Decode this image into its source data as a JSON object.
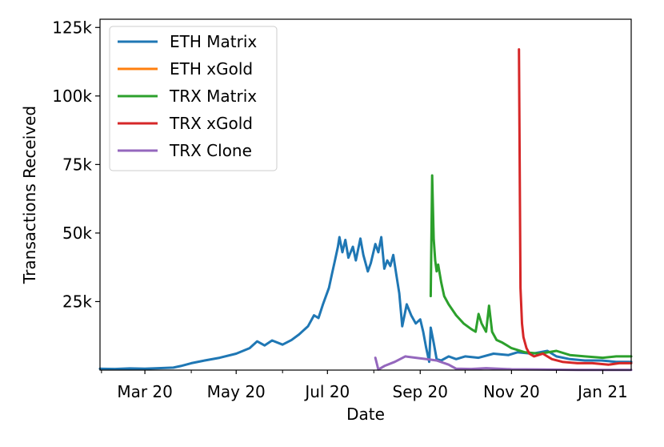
{
  "chart_data": {
    "type": "line",
    "title": "",
    "xlabel": "Date",
    "ylabel": "Transactions Received",
    "xlim": [
      "2020-01-31",
      "2021-01-20"
    ],
    "ylim": [
      0,
      128000
    ],
    "x_tick_labels": [
      {
        "date": "2020-03-01",
        "label": "Mar 20"
      },
      {
        "date": "2020-05-01",
        "label": "May 20"
      },
      {
        "date": "2020-07-01",
        "label": "Jul 20"
      },
      {
        "date": "2020-09-01",
        "label": "Sep 20"
      },
      {
        "date": "2020-11-01",
        "label": "Nov 20"
      },
      {
        "date": "2021-01-01",
        "label": "Jan 21"
      }
    ],
    "x_minor_ticks": [
      "2020-02-01",
      "2020-04-01",
      "2020-06-01",
      "2020-08-01",
      "2020-10-01",
      "2020-12-01"
    ],
    "y_ticks": [
      {
        "value": 25000,
        "label": "25k"
      },
      {
        "value": 50000,
        "label": "50k"
      },
      {
        "value": 75000,
        "label": "75k"
      },
      {
        "value": 100000,
        "label": "100k"
      },
      {
        "value": 125000,
        "label": "125k"
      }
    ],
    "grid": false,
    "legend_position": "top-left",
    "series": [
      {
        "name": "ETH Matrix",
        "color": "#1f77b4",
        "points": [
          [
            "2020-01-31",
            500
          ],
          [
            "2020-02-10",
            400
          ],
          [
            "2020-02-20",
            600
          ],
          [
            "2020-03-01",
            500
          ],
          [
            "2020-03-10",
            700
          ],
          [
            "2020-03-20",
            900
          ],
          [
            "2020-03-25",
            1500
          ],
          [
            "2020-04-01",
            2500
          ],
          [
            "2020-04-10",
            3500
          ],
          [
            "2020-04-20",
            4500
          ],
          [
            "2020-05-01",
            6000
          ],
          [
            "2020-05-10",
            8000
          ],
          [
            "2020-05-15",
            10500
          ],
          [
            "2020-05-20",
            9000
          ],
          [
            "2020-05-25",
            10800
          ],
          [
            "2020-06-01",
            9300
          ],
          [
            "2020-06-07",
            11000
          ],
          [
            "2020-06-12",
            13000
          ],
          [
            "2020-06-18",
            16000
          ],
          [
            "2020-06-22",
            20000
          ],
          [
            "2020-06-25",
            19000
          ],
          [
            "2020-06-28",
            24000
          ],
          [
            "2020-07-02",
            30000
          ],
          [
            "2020-07-04",
            35000
          ],
          [
            "2020-07-06",
            40000
          ],
          [
            "2020-07-08",
            45000
          ],
          [
            "2020-07-09",
            48500
          ],
          [
            "2020-07-11",
            43000
          ],
          [
            "2020-07-13",
            47500
          ],
          [
            "2020-07-15",
            41000
          ],
          [
            "2020-07-18",
            45000
          ],
          [
            "2020-07-20",
            40000
          ],
          [
            "2020-07-23",
            48000
          ],
          [
            "2020-07-25",
            42000
          ],
          [
            "2020-07-28",
            36000
          ],
          [
            "2020-07-30",
            39000
          ],
          [
            "2020-08-02",
            46000
          ],
          [
            "2020-08-04",
            43000
          ],
          [
            "2020-08-06",
            48500
          ],
          [
            "2020-08-08",
            37000
          ],
          [
            "2020-08-10",
            40000
          ],
          [
            "2020-08-12",
            38000
          ],
          [
            "2020-08-14",
            42000
          ],
          [
            "2020-08-16",
            35000
          ],
          [
            "2020-08-18",
            28000
          ],
          [
            "2020-08-20",
            16000
          ],
          [
            "2020-08-23",
            24000
          ],
          [
            "2020-08-26",
            20000
          ],
          [
            "2020-08-29",
            17000
          ],
          [
            "2020-09-01",
            18500
          ],
          [
            "2020-09-03",
            14000
          ],
          [
            "2020-09-05",
            8000
          ],
          [
            "2020-09-07",
            3000
          ],
          [
            "2020-09-08",
            15500
          ],
          [
            "2020-09-10",
            10000
          ],
          [
            "2020-09-12",
            4000
          ],
          [
            "2020-09-15",
            3500
          ],
          [
            "2020-09-20",
            5000
          ],
          [
            "2020-09-25",
            4000
          ],
          [
            "2020-10-01",
            5000
          ],
          [
            "2020-10-10",
            4500
          ],
          [
            "2020-10-20",
            6000
          ],
          [
            "2020-10-30",
            5500
          ],
          [
            "2020-11-05",
            6500
          ],
          [
            "2020-11-15",
            6000
          ],
          [
            "2020-11-25",
            7000
          ],
          [
            "2020-12-01",
            5000
          ],
          [
            "2020-12-10",
            4000
          ],
          [
            "2020-12-20",
            3500
          ],
          [
            "2020-12-31",
            3500
          ],
          [
            "2021-01-10",
            3000
          ],
          [
            "2021-01-20",
            3000
          ]
        ]
      },
      {
        "name": "ETH xGold",
        "color": "#ff7f0e",
        "points": []
      },
      {
        "name": "TRX Matrix",
        "color": "#2ca02c",
        "points": [
          [
            "2020-09-08",
            27000
          ],
          [
            "2020-09-09",
            71000
          ],
          [
            "2020-09-10",
            48000
          ],
          [
            "2020-09-11",
            40000
          ],
          [
            "2020-09-12",
            36000
          ],
          [
            "2020-09-13",
            38500
          ],
          [
            "2020-09-15",
            32000
          ],
          [
            "2020-09-17",
            27000
          ],
          [
            "2020-09-20",
            24000
          ],
          [
            "2020-09-25",
            20000
          ],
          [
            "2020-09-30",
            17000
          ],
          [
            "2020-10-05",
            15000
          ],
          [
            "2020-10-08",
            14000
          ],
          [
            "2020-10-10",
            20500
          ],
          [
            "2020-10-12",
            17000
          ],
          [
            "2020-10-15",
            14000
          ],
          [
            "2020-10-17",
            23500
          ],
          [
            "2020-10-19",
            14000
          ],
          [
            "2020-10-22",
            11000
          ],
          [
            "2020-10-26",
            10000
          ],
          [
            "2020-11-01",
            8000
          ],
          [
            "2020-11-10",
            6500
          ],
          [
            "2020-11-20",
            6000
          ],
          [
            "2020-12-01",
            7000
          ],
          [
            "2020-12-10",
            5500
          ],
          [
            "2020-12-20",
            5000
          ],
          [
            "2021-01-01",
            4500
          ],
          [
            "2021-01-10",
            5000
          ],
          [
            "2021-01-20",
            5000
          ]
        ]
      },
      {
        "name": "TRX xGold",
        "color": "#d62728",
        "points": [
          [
            "2020-11-06",
            117000
          ],
          [
            "2020-11-07",
            30000
          ],
          [
            "2020-11-08",
            17000
          ],
          [
            "2020-11-09",
            12000
          ],
          [
            "2020-11-11",
            8000
          ],
          [
            "2020-11-13",
            6000
          ],
          [
            "2020-11-16",
            5000
          ],
          [
            "2020-11-22",
            6000
          ],
          [
            "2020-11-28",
            4000
          ],
          [
            "2020-12-05",
            3000
          ],
          [
            "2020-12-15",
            2500
          ],
          [
            "2020-12-25",
            2500
          ],
          [
            "2021-01-05",
            2000
          ],
          [
            "2021-01-12",
            2500
          ],
          [
            "2021-01-20",
            2500
          ]
        ]
      },
      {
        "name": "TRX Clone",
        "color": "#9467bd",
        "points": [
          [
            "2020-08-02",
            4500
          ],
          [
            "2020-08-04",
            200
          ],
          [
            "2020-08-08",
            1500
          ],
          [
            "2020-08-15",
            3000
          ],
          [
            "2020-08-22",
            5000
          ],
          [
            "2020-08-29",
            4500
          ],
          [
            "2020-09-05",
            4000
          ],
          [
            "2020-09-12",
            3500
          ],
          [
            "2020-09-20",
            2000
          ],
          [
            "2020-09-25",
            500
          ],
          [
            "2020-10-05",
            400
          ],
          [
            "2020-10-15",
            700
          ],
          [
            "2020-11-01",
            300
          ],
          [
            "2020-11-20",
            200
          ],
          [
            "2020-12-15",
            100
          ],
          [
            "2021-01-20",
            100
          ]
        ]
      }
    ]
  }
}
